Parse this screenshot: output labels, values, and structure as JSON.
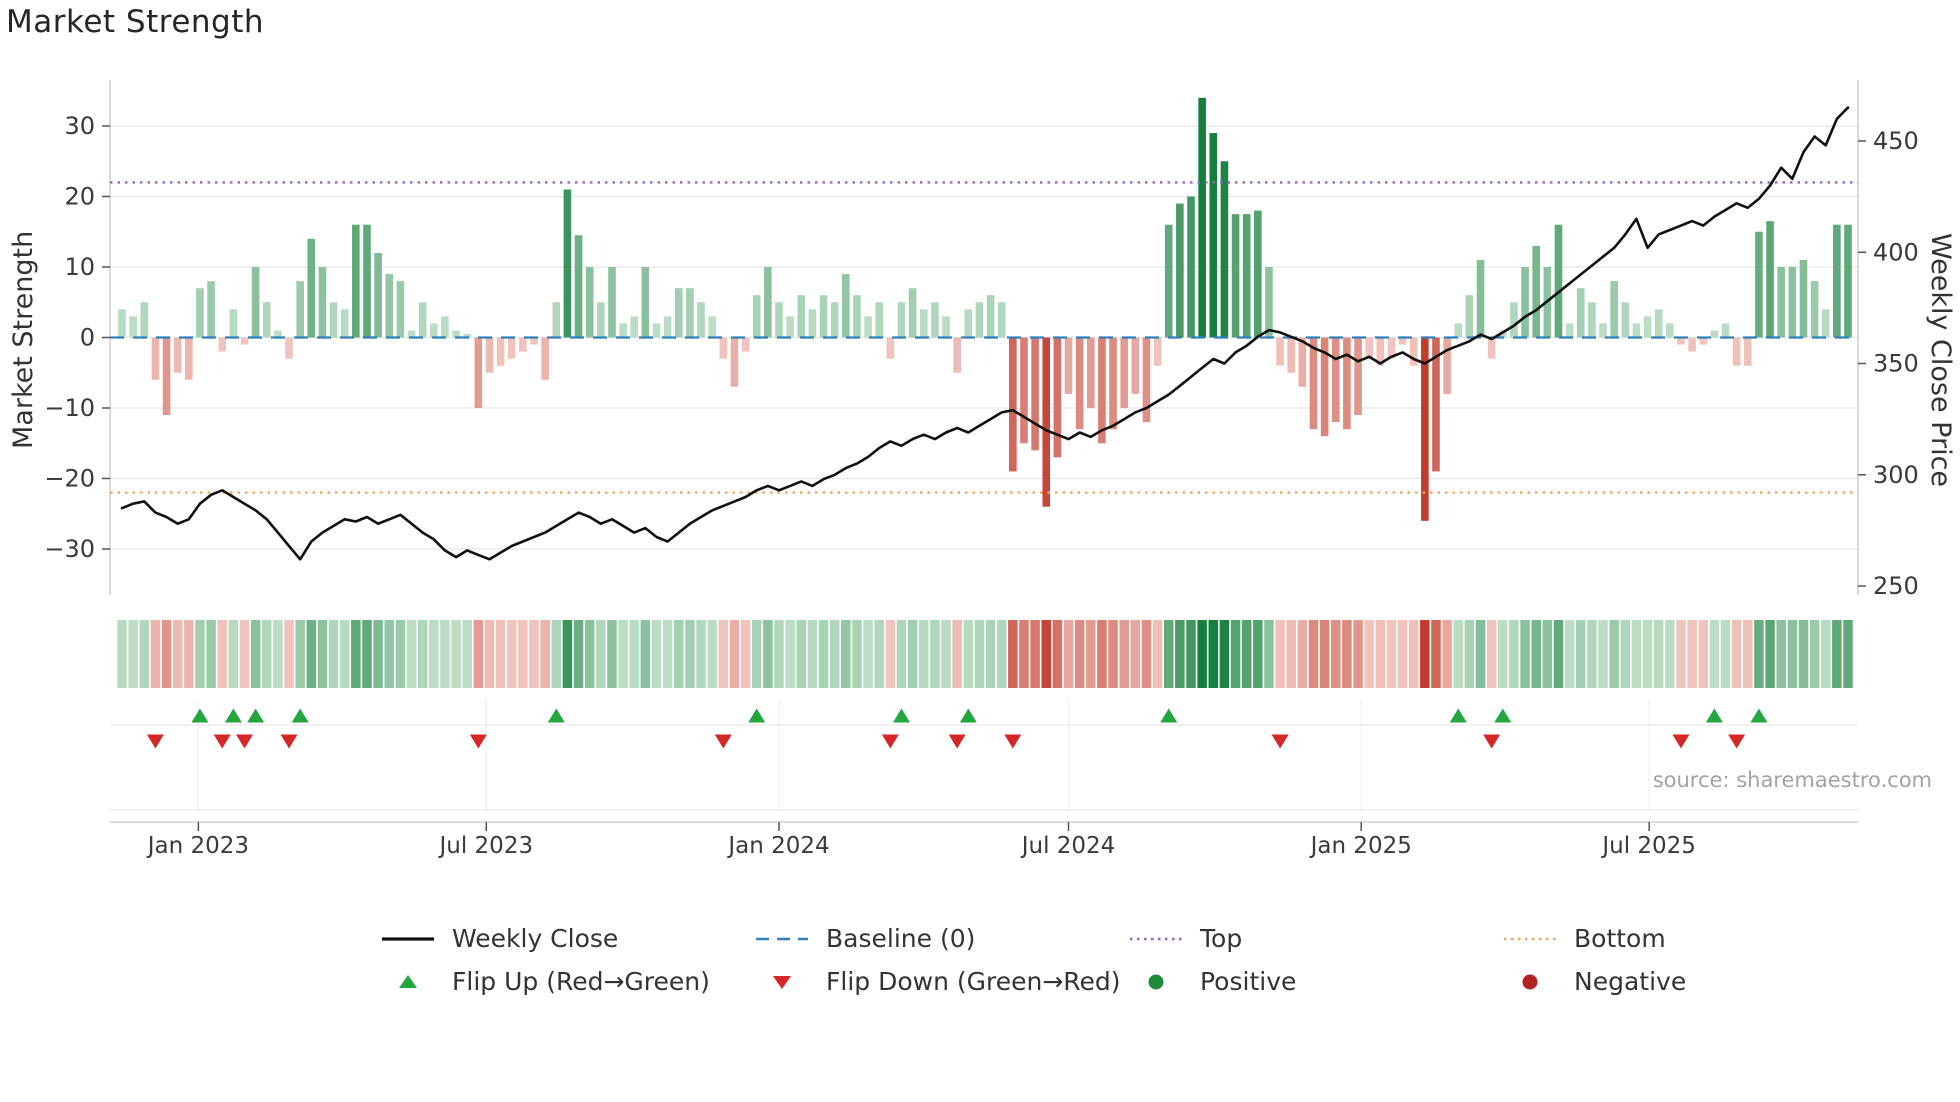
{
  "title": "Market Strength",
  "source": "source: sharemaestro.com",
  "legend": {
    "weekly_close": "Weekly Close",
    "baseline": "Baseline (0)",
    "top": "Top",
    "bottom": "Bottom",
    "flip_up": "Flip Up (Red→Green)",
    "flip_down": "Flip Down (Green→Red)",
    "positive": "Positive",
    "negative": "Negative"
  },
  "colors": {
    "line": "#111111",
    "baseline": "#2f7fb9",
    "top": "#9467bd",
    "bottom": "#f6a55e",
    "flip_up": "#23a63e",
    "flip_down": "#d62728",
    "positive_dot": "#1f8b3b",
    "negative_dot": "#b22222",
    "green_strong": "#177f3d",
    "green_weak": "#d4ecd9",
    "red_strong": "#c23b2d",
    "red_weak": "#f7d9d3",
    "grid": "#e7e7e7",
    "spine": "#cfcfcf",
    "tick": "#555555",
    "text": "#3a3a3a"
  },
  "chart_data": {
    "type": "bar",
    "title": "Market Strength",
    "start_date": "2022-11-14",
    "freq": "weekly",
    "x_ticks": [
      {
        "label": "Jan 2023",
        "date": "2023-01-01"
      },
      {
        "label": "Jul 2023",
        "date": "2023-07-01"
      },
      {
        "label": "Jan 2024",
        "date": "2024-01-01"
      },
      {
        "label": "Jul 2024",
        "date": "2024-07-01"
      },
      {
        "label": "Jan 2025",
        "date": "2025-01-01"
      },
      {
        "label": "Jul 2025",
        "date": "2025-07-01"
      }
    ],
    "left_axis": {
      "label": "Market Strength",
      "ticks": [
        {
          "label": "30",
          "value": 30
        },
        {
          "label": "20",
          "value": 20
        },
        {
          "label": "10",
          "value": 10
        },
        {
          "label": "0",
          "value": 0
        },
        {
          "label": "−10",
          "value": -10
        },
        {
          "label": "−20",
          "value": -20
        },
        {
          "label": "−30",
          "value": -30
        }
      ],
      "ylim": [
        -36.5,
        36.5
      ]
    },
    "right_axis": {
      "label": "Weekly Close Price",
      "ticks": [
        {
          "label": "450",
          "value": 450
        },
        {
          "label": "400",
          "value": 400
        },
        {
          "label": "350",
          "value": 350
        },
        {
          "label": "300",
          "value": 300
        },
        {
          "label": "250",
          "value": 250
        }
      ],
      "ylim": [
        246,
        477
      ]
    },
    "reference_lines": {
      "baseline": 0,
      "top": 22,
      "bottom": -22
    },
    "series": [
      {
        "name": "Market Strength",
        "type": "bar",
        "axis": "left",
        "values": [
          4,
          3,
          5,
          -6,
          -11,
          -5,
          -6,
          7,
          8,
          -2,
          4,
          -1,
          10,
          5,
          1,
          -3,
          8,
          14,
          10,
          5,
          4,
          16,
          16,
          12,
          9,
          8,
          1,
          5,
          2,
          3,
          1,
          0.5,
          -10,
          -5,
          -4,
          -3,
          -2,
          -1,
          -6,
          5,
          21,
          14.5,
          10,
          5,
          10,
          2,
          3,
          10,
          2,
          3,
          7,
          7,
          5,
          3,
          -3,
          -7,
          -2,
          6,
          10,
          5,
          3,
          6,
          4,
          6,
          5,
          9,
          6,
          3,
          5,
          -3,
          5,
          7,
          4,
          5,
          3,
          -5,
          4,
          5,
          6,
          5,
          -19,
          -15,
          -16,
          -24,
          -17,
          -8,
          -13,
          -10,
          -15,
          -13,
          -10,
          -8,
          -12,
          -4,
          16,
          19,
          20,
          34,
          29,
          25,
          17.5,
          17.5,
          18,
          10,
          -4,
          -5,
          -7,
          -13,
          -14,
          -12,
          -13,
          -11,
          -3,
          -4,
          -3,
          -1,
          -4,
          -26,
          -19,
          -8,
          2,
          6,
          11,
          -3,
          1,
          5,
          10,
          13,
          10,
          16,
          2,
          7,
          5,
          2,
          8,
          5,
          2,
          3,
          4,
          2,
          -1,
          -2,
          -1,
          1,
          2,
          -4,
          -4,
          15,
          16.5,
          10,
          10,
          11,
          8,
          4,
          16,
          16
        ]
      },
      {
        "name": "Weekly Close",
        "type": "line",
        "axis": "right",
        "values": [
          285,
          287,
          288,
          283,
          281,
          278,
          280,
          287,
          291,
          293,
          290,
          287,
          284,
          280,
          274,
          268,
          262,
          270,
          274,
          277,
          280,
          279,
          281,
          278,
          280,
          282,
          278,
          274,
          271,
          266,
          263,
          266,
          264,
          262,
          265,
          268,
          270,
          272,
          274,
          277,
          280,
          283,
          281,
          278,
          280,
          277,
          274,
          276,
          272,
          270,
          274,
          278,
          281,
          284,
          286,
          288,
          290,
          293,
          295,
          293,
          295,
          297,
          295,
          298,
          300,
          303,
          305,
          308,
          312,
          315,
          313,
          316,
          318,
          316,
          319,
          321,
          319,
          322,
          325,
          328,
          329,
          326,
          323,
          320,
          318,
          316,
          319,
          317,
          320,
          322,
          325,
          328,
          330,
          333,
          336,
          340,
          344,
          348,
          352,
          350,
          355,
          358,
          362,
          365,
          364,
          362,
          360,
          357,
          355,
          352,
          354,
          351,
          353,
          350,
          353,
          355,
          352,
          350,
          353,
          356,
          358,
          360,
          363,
          361,
          364,
          367,
          371,
          374,
          378,
          382,
          386,
          390,
          394,
          398,
          402,
          408,
          415,
          402,
          408,
          410,
          412,
          414,
          412,
          416,
          419,
          422,
          420,
          424,
          430,
          438,
          433,
          445,
          452,
          448,
          460,
          465
        ]
      }
    ],
    "heatmap": {
      "derived_from": "Market Strength",
      "legend": "green = positive, red = negative"
    },
    "markers": {
      "flip_up_rule": "strength crosses from negative to positive",
      "flip_down_rule": "strength crosses from positive to negative"
    }
  }
}
